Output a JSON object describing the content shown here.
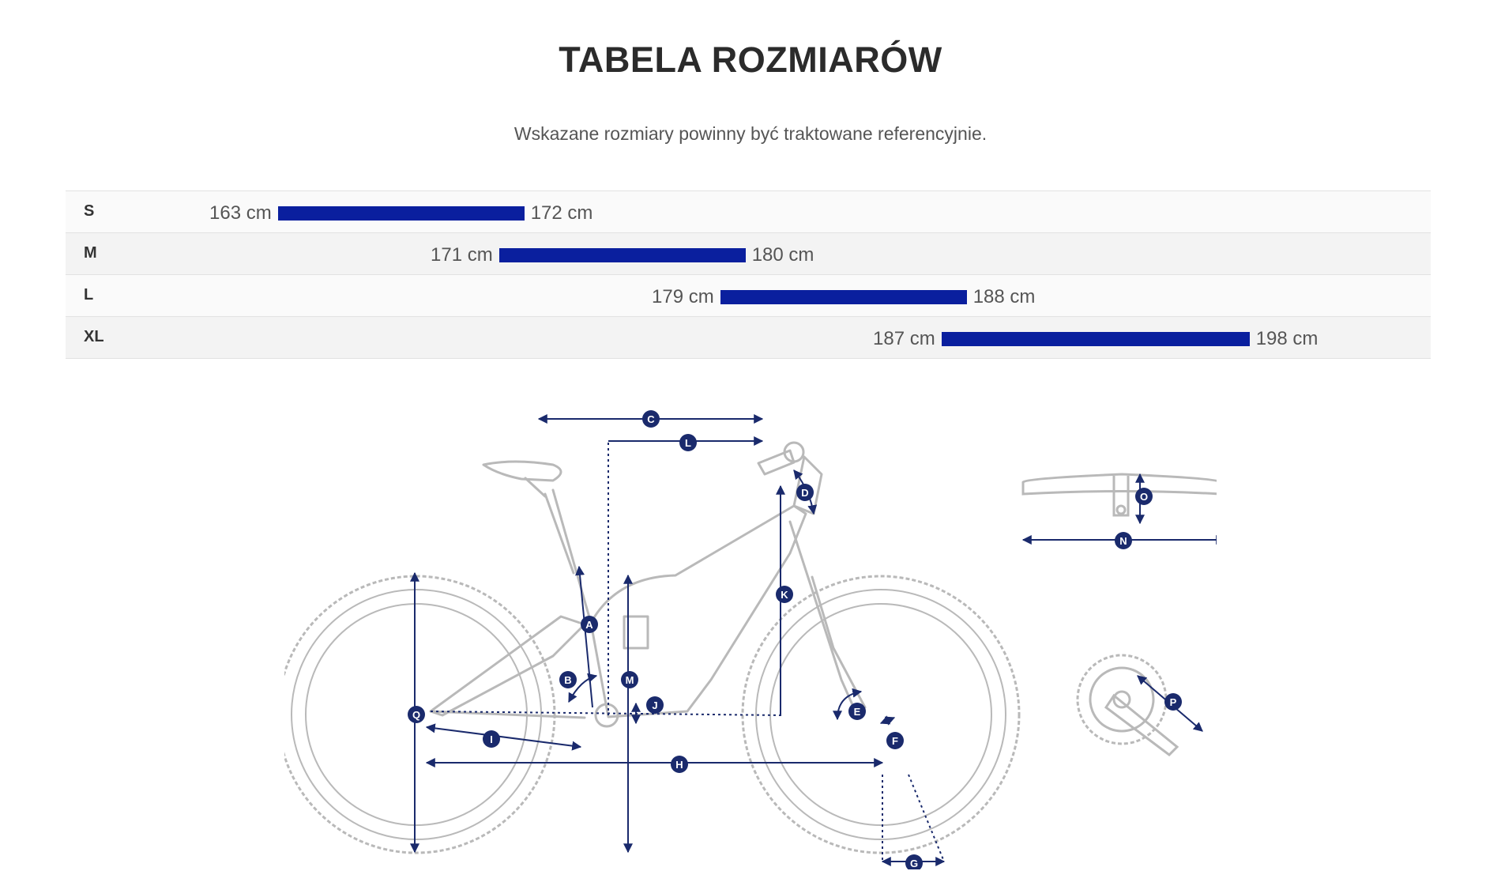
{
  "title": "TABELA ROZMIARÓW",
  "subtitle": "Wskazane rozmiary powinny być traktowane referencyjnie.",
  "sizes": [
    {
      "label": "S",
      "min": "163 cm",
      "max": "172 cm",
      "min_cm": 163,
      "max_cm": 172
    },
    {
      "label": "M",
      "min": "171 cm",
      "max": "180 cm",
      "min_cm": 171,
      "max_cm": 180
    },
    {
      "label": "L",
      "min": "179 cm",
      "max": "188 cm",
      "min_cm": 179,
      "max_cm": 188
    },
    {
      "label": "XL",
      "min": "187 cm",
      "max": "198 cm",
      "min_cm": 187,
      "max_cm": 198
    }
  ],
  "bar_color": "#0a1f9e",
  "diagram": {
    "line_color": "#1a2a6c",
    "frame_color": "#b9b9b9",
    "markers": [
      "A",
      "B",
      "C",
      "D",
      "E",
      "F",
      "G",
      "H",
      "I",
      "J",
      "K",
      "L",
      "M",
      "N",
      "O",
      "P",
      "Q"
    ]
  }
}
